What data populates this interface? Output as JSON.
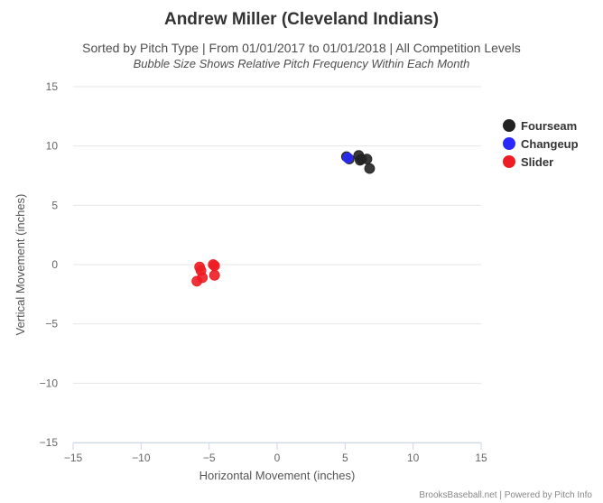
{
  "chart_data": {
    "type": "scatter",
    "title": "Andrew Miller (Cleveland Indians)",
    "subtitle": "Sorted by Pitch Type | From 01/01/2017 to 01/01/2018 | All Competition Levels",
    "subtitle2": "Bubble Size Shows Relative Pitch Frequency Within Each Month",
    "xlabel": "Horizontal Movement (inches)",
    "ylabel": "Vertical Movement (inches)",
    "xlim": [
      -15,
      15
    ],
    "ylim": [
      -15,
      15
    ],
    "xticks": [
      -15,
      -10,
      -5,
      0,
      5,
      10,
      15
    ],
    "yticks": [
      -15,
      -10,
      -5,
      0,
      5,
      10,
      15
    ],
    "xtick_labels": [
      "−15",
      "−10",
      "−5",
      "0",
      "5",
      "10",
      "15"
    ],
    "ytick_labels": [
      "−15",
      "−10",
      "−5",
      "0",
      "5",
      "10",
      "15"
    ],
    "grid": true,
    "legend_position": "right",
    "series": [
      {
        "name": "Fourseam",
        "color": "#222222",
        "points": [
          {
            "x": 5.1,
            "y": 9.1
          },
          {
            "x": 5.3,
            "y": 8.9
          },
          {
            "x": 6.0,
            "y": 9.2
          },
          {
            "x": 6.2,
            "y": 8.9
          },
          {
            "x": 6.1,
            "y": 8.8
          },
          {
            "x": 6.6,
            "y": 8.9
          },
          {
            "x": 6.8,
            "y": 8.1
          }
        ]
      },
      {
        "name": "Changeup",
        "color": "#2a2aff",
        "points": [
          {
            "x": 5.2,
            "y": 9.0
          }
        ]
      },
      {
        "name": "Slider",
        "color": "#ee1c24",
        "points": [
          {
            "x": -5.7,
            "y": -0.2
          },
          {
            "x": -5.6,
            "y": -0.5
          },
          {
            "x": -5.5,
            "y": -1.1
          },
          {
            "x": -5.9,
            "y": -1.4
          },
          {
            "x": -4.7,
            "y": 0.0
          },
          {
            "x": -4.6,
            "y": -0.1
          },
          {
            "x": -4.6,
            "y": -0.9
          }
        ]
      }
    ]
  },
  "credits": "BrooksBaseball.net | Powered by Pitch Info"
}
